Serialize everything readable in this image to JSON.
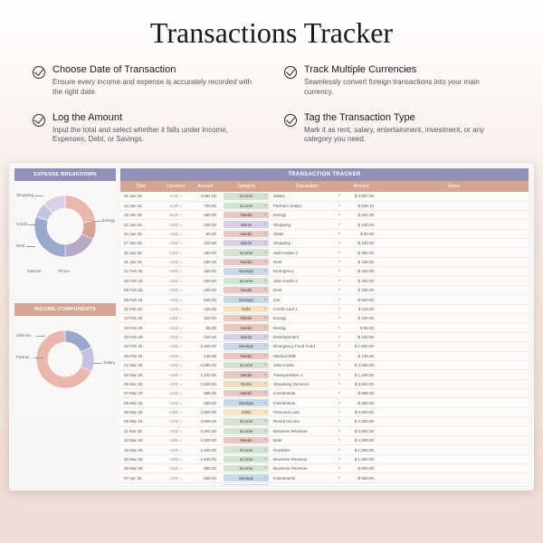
{
  "title": "Transactions Tracker",
  "features": [
    {
      "title": "Choose Date of Transaction",
      "desc": "Ensure every income and expense is accurately recorded with the right date."
    },
    {
      "title": "Track Multiple Currencies",
      "desc": "Seamlessly convert foreign transactions into your main currency."
    },
    {
      "title": "Log the Amount",
      "desc": "Input the total and select whether it falls under Income, Expenses, Debt, or Savings."
    },
    {
      "title": "Tag the Transaction Type",
      "desc": "Mark it as rent, salary, entertainment, investment, or any category you need."
    }
  ],
  "colors": {
    "purple": "#9090b8",
    "peach": "#d4a590",
    "blue": "#a8b8d8",
    "pink": "#e8b8b0",
    "yellow": "#e8d8a8",
    "lightpurple": "#c8c0e0",
    "bg": "#fdfbf9"
  },
  "expense_breakdown": {
    "title": "EXPENSE BREAKDOWN",
    "slices": [
      {
        "label": "Shopping",
        "value": 22,
        "color": "#e8b8b0"
      },
      {
        "label": "Credit",
        "value": 10,
        "color": "#d4a590"
      },
      {
        "label": "Rent",
        "value": 18,
        "color": "#b8a8c8"
      },
      {
        "label": "Energy",
        "value": 30,
        "color": "#9aa8cc"
      },
      {
        "label": "Internet",
        "value": 8,
        "color": "#c0c8e0"
      },
      {
        "label": "Phone",
        "value": 12,
        "color": "#d8d0e8"
      }
    ],
    "center_label": "Energy",
    "center_sub": "$2,172"
  },
  "income_components": {
    "title": "INCOME COMPONENTS",
    "slices": [
      {
        "label": "Side Hu…",
        "value": 18,
        "color": "#9aa8cc"
      },
      {
        "label": "Partner…",
        "value": 14,
        "color": "#c8c0e0"
      },
      {
        "label": "Salary",
        "value": 68,
        "color": "#e8b8b0"
      }
    ]
  },
  "tracker": {
    "title": "TRANSACTION TRACKER",
    "columns": [
      "Date",
      "Currency",
      "Amount",
      "Category",
      "Transaction",
      "Amount",
      "Notes"
    ],
    "category_colors": {
      "Income": "#d4e4d4",
      "Needs": "#e8c8c0",
      "Wants": "#d8d0e8",
      "Savings": "#c8d8e8",
      "Rents": "#f0e0c0",
      "Debt": "#f4e4c4"
    },
    "rows": [
      {
        "date": "01 Jan 25",
        "curr": "AUD",
        "amt": "4,891.00",
        "cat": "Income",
        "txn": "Salary",
        "amt2": "$ 4,097.06"
      },
      {
        "date": "14 Jan 25",
        "curr": "AUD",
        "amt": "720.00",
        "cat": "Income",
        "txn": "Partners Salary",
        "amt2": "$ 549.10"
      },
      {
        "date": "19 Jan 25",
        "curr": "EUR",
        "amt": "300.00",
        "cat": "Needs",
        "txn": "Energy",
        "amt2": "$ 334.39"
      },
      {
        "date": "22 Jan 25",
        "curr": "USD",
        "amt": "150.00",
        "cat": "Wants",
        "txn": "Shopping",
        "amt2": "$ 150.00"
      },
      {
        "date": "24 Jan 25",
        "curr": "USD",
        "amt": "90.00",
        "cat": "Needs",
        "txn": "Water",
        "amt2": "$ 90.00"
      },
      {
        "date": "27 Jan 25",
        "curr": "USD",
        "amt": "120.00",
        "cat": "Wants",
        "txn": "Shopping",
        "amt2": "$ 120.00"
      },
      {
        "date": "30 Jan 25",
        "curr": "USD",
        "amt": "360.00",
        "cat": "Income",
        "txn": "Side Hustle 3",
        "amt2": "$ 360.00"
      },
      {
        "date": "31 Jan 25",
        "curr": "USD",
        "amt": "180.00",
        "cat": "Needs",
        "txn": "Rent",
        "amt2": "$ 180.00"
      },
      {
        "date": "01 Feb 25",
        "curr": "USD",
        "amt": "160.00",
        "cat": "Savings",
        "txn": "Emergency",
        "amt2": "$ 160.00"
      },
      {
        "date": "03 Feb 25",
        "curr": "USD",
        "amt": "200.00",
        "cat": "Income",
        "txn": "Side Hustle 2",
        "amt2": "$ 200.00"
      },
      {
        "date": "06 Feb 25",
        "curr": "USD",
        "amt": "190.00",
        "cat": "Needs",
        "txn": "Rent",
        "amt2": "$ 190.00"
      },
      {
        "date": "06 Feb 25",
        "curr": "USD",
        "amt": "520.00",
        "cat": "Savings",
        "txn": "Car",
        "amt2": "$ 520.00"
      },
      {
        "date": "11 Feb 25",
        "curr": "USD",
        "amt": "116.00",
        "cat": "Debt",
        "txn": "Credit Card 1",
        "amt2": "$ 116.00"
      },
      {
        "date": "13 Feb 25",
        "curr": "USD",
        "amt": "120.00",
        "cat": "Needs",
        "txn": "Energy",
        "amt2": "$ 120.00"
      },
      {
        "date": "18 Feb 25",
        "curr": "USD",
        "amt": "95.00",
        "cat": "Needs",
        "txn": "Energy",
        "amt2": "$ 95.00"
      },
      {
        "date": "20 Feb 25",
        "curr": "USD",
        "amt": "120.00",
        "cat": "Wants",
        "txn": "Entertainment",
        "amt2": "$ 120.00"
      },
      {
        "date": "22 Feb 25",
        "curr": "USD",
        "amt": "1,820.00",
        "cat": "Savings",
        "txn": "Emergency Food Fund",
        "amt2": "$ 1,820.00"
      },
      {
        "date": "26 Feb 25",
        "curr": "USD",
        "amt": "135.00",
        "cat": "Needs",
        "txn": "Medical Bills",
        "amt2": "$ 135.00"
      },
      {
        "date": "01 Mar 25",
        "curr": "USD",
        "amt": "2,690.00",
        "cat": "Income",
        "txn": "Side Hustle",
        "amt2": "$ 2,690.00"
      },
      {
        "date": "02 Mar 25",
        "curr": "USD",
        "amt": "1,100.00",
        "cat": "Needs",
        "txn": "Transportation 1",
        "amt2": "$ 1,100.00"
      },
      {
        "date": "05 Mar 25",
        "curr": "USD",
        "amt": "2,500.00",
        "cat": "Rents",
        "txn": "Streaming Services",
        "amt2": "$ 2,500.00"
      },
      {
        "date": "07 Mar 25",
        "curr": "USD",
        "amt": "895.00",
        "cat": "Needs",
        "txn": "Investments",
        "amt2": "$ 895.00"
      },
      {
        "date": "08 Mar 25",
        "curr": "USD",
        "amt": "250.00",
        "cat": "Savings",
        "txn": "Investments",
        "amt2": "$ 250.00"
      },
      {
        "date": "08 Mar 25",
        "curr": "USD",
        "amt": "2,500.00",
        "cat": "Debt",
        "txn": "Personal Loan",
        "amt2": "$ 2,500.00"
      },
      {
        "date": "09 Mar 25",
        "curr": "USD",
        "amt": "2,500.00",
        "cat": "Income",
        "txn": "Rental Income",
        "amt2": "$ 2,500.00"
      },
      {
        "date": "11 Mar 25",
        "curr": "USD",
        "amt": "2,500.00",
        "cat": "Income",
        "txn": "Business Revenue",
        "amt2": "$ 2,500.00"
      },
      {
        "date": "13 Mar 25",
        "curr": "USD",
        "amt": "1,500.00",
        "cat": "Needs",
        "txn": "Debt",
        "amt2": "$ 1,500.00"
      },
      {
        "date": "15 Mar 25",
        "curr": "USD",
        "amt": "1,500.00",
        "cat": "Income",
        "txn": "Royalties",
        "amt2": "$ 1,500.00"
      },
      {
        "date": "20 Mar 25",
        "curr": "USD",
        "amt": "1,500.00",
        "cat": "Income",
        "txn": "Business Revenue",
        "amt2": "$ 1,500.00"
      },
      {
        "date": "30 Mar 25",
        "curr": "USD",
        "amt": "800.00",
        "cat": "Income",
        "txn": "Business Revenue",
        "amt2": "$ 800.00"
      },
      {
        "date": "07 Apr 25",
        "curr": "USD",
        "amt": "500.00",
        "cat": "Savings",
        "txn": "Investments",
        "amt2": "$ 500.00"
      },
      {
        "date": "08 Apr 25",
        "curr": "USD",
        "amt": "50.00",
        "cat": "Wants",
        "txn": "Education",
        "amt2": "$ 50.00"
      },
      {
        "date": "09 Apr 25",
        "curr": "USD",
        "amt": "250.00",
        "cat": "Income",
        "txn": "Government Aid",
        "amt2": "$ 250.00"
      },
      {
        "date": "11 Apr 25",
        "curr": "USD",
        "amt": "200.00",
        "cat": "Income",
        "txn": "Commissions",
        "amt2": "$ 200.00"
      },
      {
        "date": "12 Apr 25",
        "curr": "USD",
        "amt": "800.00",
        "cat": "Savings",
        "txn": "Investments 2",
        "amt2": "$ 800.00"
      },
      {
        "date": "12 Apr 25",
        "curr": "USD",
        "amt": "850.00",
        "cat": "Needs",
        "txn": "Debt Repayment 2",
        "amt2": "$ 850.00"
      }
    ]
  }
}
